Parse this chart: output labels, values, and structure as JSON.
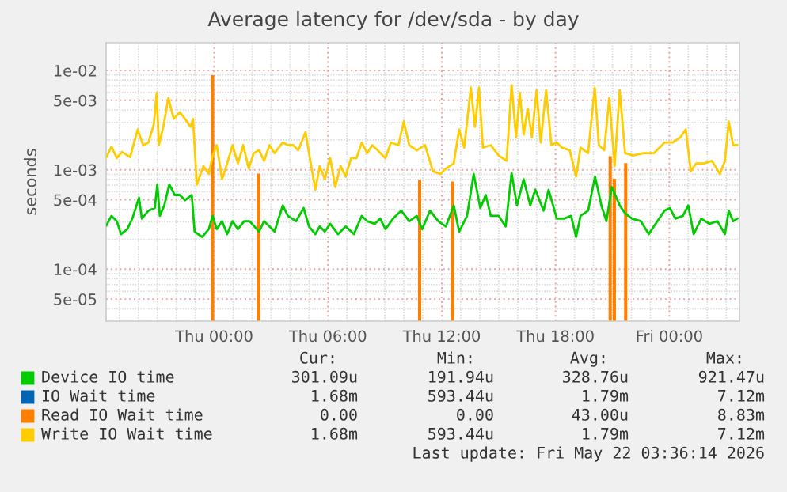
{
  "chart_data": {
    "type": "line",
    "title": "Average latency for /dev/sda - by day",
    "ylabel": "seconds",
    "log": "y",
    "grid": true,
    "legend": "bottom",
    "xlim": [
      "2026-05-20T18:18",
      "2026-05-22T03:42"
    ],
    "xticks": [
      {
        "value": "2026-05-21T00:00",
        "label": "Thu 00:00"
      },
      {
        "value": "2026-05-21T06:00",
        "label": "Thu 06:00"
      },
      {
        "value": "2026-05-21T12:00",
        "label": "Thu 12:00"
      },
      {
        "value": "2026-05-21T18:00",
        "label": "Thu 18:00"
      },
      {
        "value": "2026-05-22T00:00",
        "label": "Fri 00:00"
      }
    ],
    "ylim": [
      3e-05,
      0.019
    ],
    "yticks": [
      {
        "value": 5e-05,
        "label": "5e-05"
      },
      {
        "value": 0.0001,
        "label": "1e-04"
      },
      {
        "value": 0.0005,
        "label": "5e-04"
      },
      {
        "value": 0.001,
        "label": "1e-03"
      },
      {
        "value": 0.005,
        "label": "5e-03"
      },
      {
        "value": 0.01,
        "label": "1e-02"
      }
    ],
    "series": [
      {
        "name": "Device IO time",
        "color": "#00cc00",
        "x": [
          "2026-05-20T18:19",
          "2026-05-20T18:35",
          "2026-05-20T18:52",
          "2026-05-20T19:05",
          "2026-05-20T19:25",
          "2026-05-20T19:41",
          "2026-05-20T20:02",
          "2026-05-20T20:11",
          "2026-05-20T20:32",
          "2026-05-20T20:52",
          "2026-05-20T21:00",
          "2026-05-20T21:08",
          "2026-05-20T21:22",
          "2026-05-20T21:38",
          "2026-05-20T21:55",
          "2026-05-20T22:11",
          "2026-05-20T22:28",
          "2026-05-20T22:49",
          "2026-05-20T22:58",
          "2026-05-20T23:22",
          "2026-05-20T23:43",
          "2026-05-20T23:55",
          "2026-05-21T00:08",
          "2026-05-21T00:25",
          "2026-05-21T00:41",
          "2026-05-21T00:58",
          "2026-05-21T01:15",
          "2026-05-21T01:35",
          "2026-05-21T01:52",
          "2026-05-21T02:22",
          "2026-05-21T02:38",
          "2026-05-21T02:55",
          "2026-05-21T03:11",
          "2026-05-21T03:37",
          "2026-05-21T03:53",
          "2026-05-21T04:19",
          "2026-05-21T04:43",
          "2026-05-21T05:00",
          "2026-05-21T05:20",
          "2026-05-21T05:34",
          "2026-05-21T05:50",
          "2026-05-21T06:07",
          "2026-05-21T06:32",
          "2026-05-21T06:56",
          "2026-05-21T07:22",
          "2026-05-21T07:47",
          "2026-05-21T08:04",
          "2026-05-21T08:28",
          "2026-05-21T08:45",
          "2026-05-21T09:02",
          "2026-05-21T09:26",
          "2026-05-21T09:52",
          "2026-05-21T10:17",
          "2026-05-21T10:41",
          "2026-05-21T10:58",
          "2026-05-21T11:23",
          "2026-05-21T11:49",
          "2026-05-21T12:13",
          "2026-05-21T12:38",
          "2026-05-21T12:55",
          "2026-05-21T13:20",
          "2026-05-21T13:41",
          "2026-05-21T14:02",
          "2026-05-21T14:19",
          "2026-05-21T14:35",
          "2026-05-21T15:00",
          "2026-05-21T15:22",
          "2026-05-21T15:41",
          "2026-05-21T15:58",
          "2026-05-21T16:19",
          "2026-05-21T16:40",
          "2026-05-21T16:56",
          "2026-05-21T17:22",
          "2026-05-21T17:38",
          "2026-05-21T18:04",
          "2026-05-21T18:28",
          "2026-05-21T18:49",
          "2026-05-21T19:05",
          "2026-05-21T19:19",
          "2026-05-21T19:43",
          "2026-05-21T20:05",
          "2026-05-21T20:25",
          "2026-05-21T20:41",
          "2026-05-21T20:58",
          "2026-05-21T21:23",
          "2026-05-21T21:40",
          "2026-05-21T22:02",
          "2026-05-21T22:30",
          "2026-05-21T22:55",
          "2026-05-21T23:11",
          "2026-05-21T23:45",
          "2026-05-22T00:02",
          "2026-05-22T00:19",
          "2026-05-22T00:43",
          "2026-05-22T01:00",
          "2026-05-22T01:17",
          "2026-05-22T01:41",
          "2026-05-22T02:07",
          "2026-05-22T02:32",
          "2026-05-22T02:56",
          "2026-05-22T03:08",
          "2026-05-22T03:22",
          "2026-05-22T03:35"
        ],
        "values": [
          0.000276,
          0.000344,
          0.000304,
          0.000225,
          0.000253,
          0.000323,
          0.000525,
          0.000323,
          0.000388,
          0.000412,
          0.000712,
          0.000344,
          0.000438,
          0.000712,
          0.000558,
          0.000558,
          0.000494,
          0.000558,
          0.000239,
          0.000211,
          0.000253,
          0.000344,
          0.000253,
          0.000304,
          0.000225,
          0.000304,
          0.000253,
          0.000304,
          0.000304,
          0.000239,
          0.000304,
          0.000269,
          0.000239,
          0.000438,
          0.000344,
          0.000304,
          0.000412,
          0.000269,
          0.000225,
          0.000269,
          0.000239,
          0.000286,
          0.000225,
          0.000269,
          0.000225,
          0.000344,
          0.000304,
          0.000286,
          0.000323,
          0.000253,
          0.000323,
          0.000388,
          0.000304,
          0.000344,
          0.000253,
          0.000388,
          0.000304,
          0.000269,
          0.000438,
          0.000239,
          0.000344,
          0.000908,
          0.000412,
          0.000558,
          0.000344,
          0.000344,
          0.000269,
          0.00092,
          0.000438,
          0.000804,
          0.000438,
          0.000631,
          0.000388,
          0.000631,
          0.000323,
          0.000323,
          0.000344,
          0.000211,
          0.000344,
          0.000388,
          0.000854,
          0.000438,
          0.000304,
          0.00067,
          0.000438,
          0.000365,
          0.000323,
          0.000304,
          0.000225,
          0.000269,
          0.000388,
          0.000412,
          0.000323,
          0.000344,
          0.000438,
          0.000225,
          0.000323,
          0.000286,
          0.000304,
          0.000225,
          0.000388,
          0.000304,
          0.000323
        ]
      },
      {
        "name": "IO Wait time",
        "color": "#0066b3"
      },
      {
        "name": "Read IO Wait time",
        "color": "#ff8000",
        "type": "bar",
        "x": [
          "2026-05-20T23:55",
          "2026-05-21T02:20",
          "2026-05-21T10:50",
          "2026-05-21T12:34",
          "2026-05-21T20:53",
          "2026-05-21T21:06",
          "2026-05-21T21:42"
        ],
        "values": [
          0.00883,
          0.0009,
          0.00078,
          0.00075,
          0.00135,
          0.0008,
          0.00115
        ]
      },
      {
        "name": "Write IO Wait time",
        "color": "#ffcc00",
        "x": [
          "2026-05-20T18:19",
          "2026-05-20T18:35",
          "2026-05-20T18:52",
          "2026-05-20T19:08",
          "2026-05-20T19:34",
          "2026-05-20T19:58",
          "2026-05-20T20:15",
          "2026-05-20T20:32",
          "2026-05-20T20:49",
          "2026-05-20T20:58",
          "2026-05-20T21:05",
          "2026-05-20T21:19",
          "2026-05-20T21:35",
          "2026-05-20T21:52",
          "2026-05-20T22:11",
          "2026-05-20T22:28",
          "2026-05-20T22:45",
          "2026-05-20T22:53",
          "2026-05-20T23:05",
          "2026-05-20T23:26",
          "2026-05-20T23:43",
          "2026-05-20T23:55",
          "2026-05-21T00:08",
          "2026-05-21T00:25",
          "2026-05-21T00:41",
          "2026-05-21T00:58",
          "2026-05-21T01:15",
          "2026-05-21T01:32",
          "2026-05-21T01:49",
          "2026-05-21T02:05",
          "2026-05-21T02:22",
          "2026-05-21T02:38",
          "2026-05-21T02:55",
          "2026-05-21T03:11",
          "2026-05-21T03:37",
          "2026-05-21T03:53",
          "2026-05-21T04:10",
          "2026-05-21T04:26",
          "2026-05-21T04:49",
          "2026-05-21T05:00",
          "2026-05-21T05:20",
          "2026-05-21T05:34",
          "2026-05-21T05:50",
          "2026-05-21T06:07",
          "2026-05-21T06:23",
          "2026-05-21T06:40",
          "2026-05-21T06:56",
          "2026-05-21T07:13",
          "2026-05-21T07:30",
          "2026-05-21T07:47",
          "2026-05-21T08:04",
          "2026-05-21T08:20",
          "2026-05-21T08:37",
          "2026-05-21T09:02",
          "2026-05-21T09:19",
          "2026-05-21T09:43",
          "2026-05-21T10:00",
          "2026-05-21T10:17",
          "2026-05-21T10:41",
          "2026-05-21T11:07",
          "2026-05-21T11:32",
          "2026-05-21T11:56",
          "2026-05-21T12:13",
          "2026-05-21T12:38",
          "2026-05-21T12:55",
          "2026-05-21T13:11",
          "2026-05-21T13:32",
          "2026-05-21T13:45",
          "2026-05-21T13:58",
          "2026-05-21T14:10",
          "2026-05-21T14:35",
          "2026-05-21T15:00",
          "2026-05-21T15:25",
          "2026-05-21T15:41",
          "2026-05-21T15:55",
          "2026-05-21T16:07",
          "2026-05-21T16:19",
          "2026-05-21T16:32",
          "2026-05-21T16:45",
          "2026-05-21T17:00",
          "2026-05-21T17:13",
          "2026-05-21T17:30",
          "2026-05-21T17:47",
          "2026-05-21T18:04",
          "2026-05-21T18:20",
          "2026-05-21T18:45",
          "2026-05-21T19:05",
          "2026-05-21T19:19",
          "2026-05-21T19:43",
          "2026-05-21T20:04",
          "2026-05-21T20:17",
          "2026-05-21T20:34",
          "2026-05-21T20:50",
          "2026-05-21T21:07",
          "2026-05-21T21:23",
          "2026-05-21T21:40",
          "2026-05-21T22:05",
          "2026-05-21T22:38",
          "2026-05-21T23:11",
          "2026-05-21T23:45",
          "2026-05-22T00:10",
          "2026-05-22T00:35",
          "2026-05-22T00:52",
          "2026-05-22T01:08",
          "2026-05-22T01:25",
          "2026-05-22T01:50",
          "2026-05-22T02:15",
          "2026-05-22T02:40",
          "2026-05-22T02:56",
          "2026-05-22T03:08",
          "2026-05-22T03:22",
          "2026-05-22T03:35"
        ],
        "values": [
          0.00134,
          0.00171,
          0.00131,
          0.00151,
          0.00134,
          0.00255,
          0.00177,
          0.00188,
          0.00288,
          0.00596,
          0.00177,
          0.00271,
          0.00528,
          0.00325,
          0.0038,
          0.00325,
          0.00271,
          0.00325,
          0.000712,
          0.00109,
          0.000908,
          0.00139,
          0.00177,
          0.000804,
          0.00116,
          0.00177,
          0.00116,
          0.00177,
          0.00103,
          0.00147,
          0.00157,
          0.00123,
          0.00177,
          0.00147,
          0.00188,
          0.00177,
          0.00177,
          0.00157,
          0.0024,
          0.00147,
          0.000631,
          0.00109,
          0.000804,
          0.00131,
          0.00067,
          0.00109,
          0.000854,
          0.00131,
          0.00131,
          0.00188,
          0.00147,
          0.00177,
          0.00157,
          0.00131,
          0.00188,
          0.00177,
          0.00306,
          0.00177,
          0.00157,
          0.00177,
          0.000965,
          0.000908,
          0.00103,
          0.00116,
          0.00255,
          0.00167,
          0.00673,
          0.00271,
          0.00673,
          0.00167,
          0.00177,
          0.00139,
          0.00123,
          0.00712,
          0.00212,
          0.00596,
          0.00226,
          0.00414,
          0.00212,
          0.00634,
          0.00188,
          0.00634,
          0.00177,
          0.00188,
          0.00167,
          0.00157,
          0.000854,
          0.00167,
          0.00147,
          0.00673,
          0.00177,
          0.00157,
          0.00528,
          0.00109,
          0.00634,
          0.00147,
          0.00139,
          0.00147,
          0.00147,
          0.00188,
          0.00188,
          0.00212,
          0.00255,
          0.000965,
          0.00116,
          0.00116,
          0.00123,
          0.000908,
          0.00123,
          0.00306,
          0.00177,
          0.00177
        ]
      }
    ],
    "annotations": [
      "Cur:",
      "Min:",
      "Avg:",
      "Max:",
      "301.09u",
      "191.94u",
      "328.76u",
      "921.47u",
      "1.68m",
      "593.44u",
      "1.79m",
      "7.12m",
      "0.00",
      "0.00",
      "43.00u",
      "8.83m",
      "1.68m",
      "593.44u",
      "1.79m",
      "7.12m",
      "Last update: Fri May 22 03:36:14 2026"
    ]
  }
}
